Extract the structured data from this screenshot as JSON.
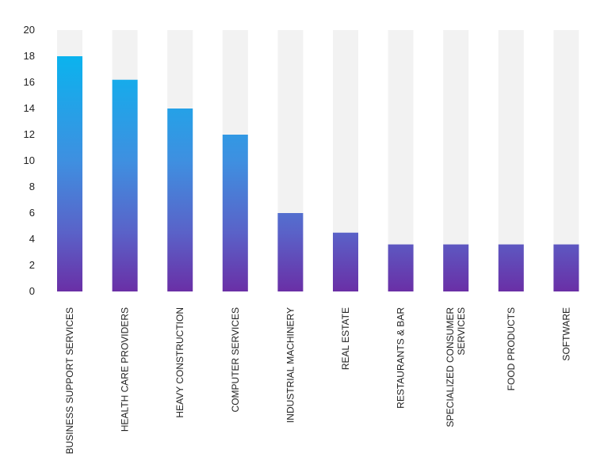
{
  "chart_data": {
    "type": "bar",
    "categories": [
      [
        "BUSINESS SUPPORT SERVICES"
      ],
      [
        "HEALTH CARE PROVIDERS"
      ],
      [
        "HEAVY CONSTRUCTION"
      ],
      [
        "COMPUTER SERVICES"
      ],
      [
        "INDUSTRIAL MACHINERY"
      ],
      [
        "REAL ESTATE"
      ],
      [
        "RESTAURANTS & BAR"
      ],
      [
        "SPECIALIZED CONSUMER",
        "SERVICES"
      ],
      [
        "FOOD PRODUCTS"
      ],
      [
        "SOFTWARE"
      ]
    ],
    "values": [
      18,
      16.2,
      14,
      12,
      6,
      4.5,
      3.6,
      3.6,
      3.6,
      3.6
    ],
    "ylim": [
      0,
      20
    ],
    "yticks": [
      0,
      2,
      4,
      6,
      8,
      10,
      12,
      14,
      16,
      18,
      20
    ],
    "background_bar_value": 20,
    "grid": false,
    "colors": {
      "bar_top": "#0bb3ee",
      "bar_mid": "#4b7fd6",
      "bar_bottom": "#6a2fa6",
      "track": "#f2f2f2",
      "text": "#222222"
    }
  }
}
